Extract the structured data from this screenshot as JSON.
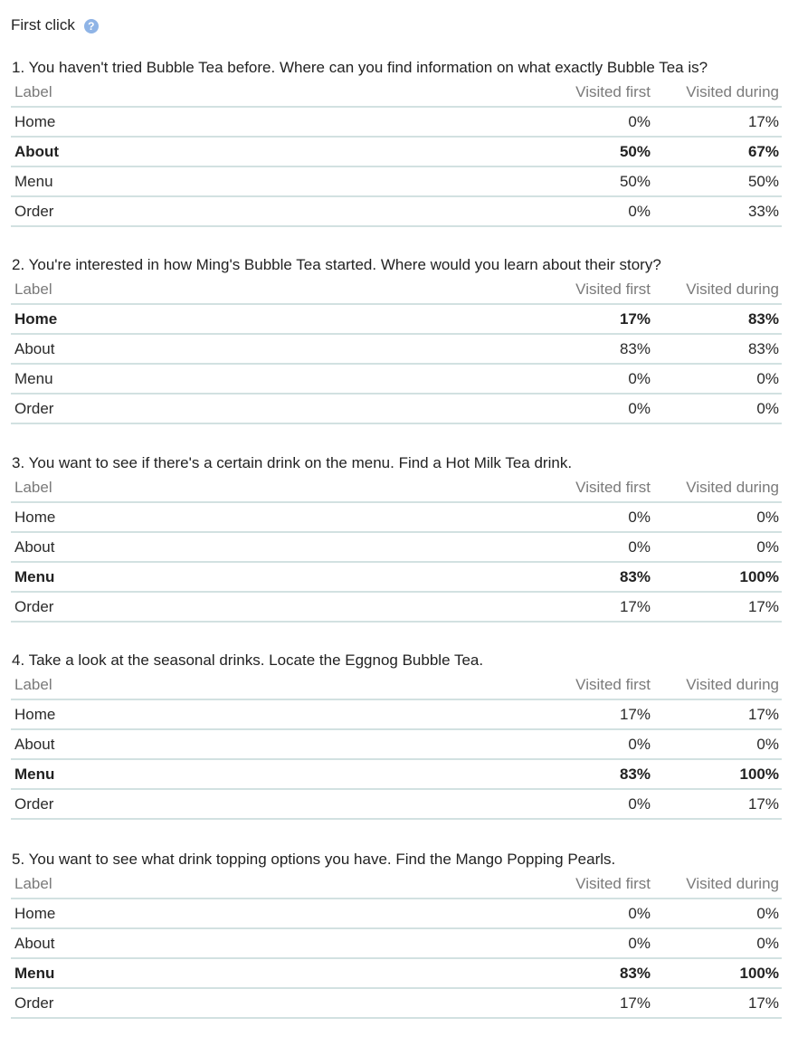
{
  "header": {
    "title": "First click",
    "help_glyph": "?"
  },
  "columns": {
    "label": "Label",
    "visited_first": "Visited first",
    "visited_during": "Visited during"
  },
  "questions": [
    {
      "text": "1. You haven't tried Bubble Tea before. Where can you find information on what exactly Bubble Tea is?",
      "rows": [
        {
          "label": "Home",
          "first": "0%",
          "during": "17%",
          "bold": false
        },
        {
          "label": "About",
          "first": "50%",
          "during": "67%",
          "bold": true
        },
        {
          "label": "Menu",
          "first": "50%",
          "during": "50%",
          "bold": false
        },
        {
          "label": "Order",
          "first": "0%",
          "during": "33%",
          "bold": false
        }
      ]
    },
    {
      "text": "2. You're interested in how Ming's Bubble Tea started. Where would you learn about their story?",
      "rows": [
        {
          "label": "Home",
          "first": "17%",
          "during": "83%",
          "bold": true
        },
        {
          "label": "About",
          "first": "83%",
          "during": "83%",
          "bold": false
        },
        {
          "label": "Menu",
          "first": "0%",
          "during": "0%",
          "bold": false
        },
        {
          "label": "Order",
          "first": "0%",
          "during": "0%",
          "bold": false
        }
      ]
    },
    {
      "text": "3. You want to see if there's a certain drink on the menu. Find a Hot Milk Tea drink.",
      "rows": [
        {
          "label": "Home",
          "first": "0%",
          "during": "0%",
          "bold": false
        },
        {
          "label": "About",
          "first": "0%",
          "during": "0%",
          "bold": false
        },
        {
          "label": "Menu",
          "first": "83%",
          "during": "100%",
          "bold": true
        },
        {
          "label": "Order",
          "first": "17%",
          "during": "17%",
          "bold": false
        }
      ]
    },
    {
      "text": "4. Take a look at the seasonal drinks. Locate the Eggnog Bubble Tea.",
      "rows": [
        {
          "label": "Home",
          "first": "17%",
          "during": "17%",
          "bold": false
        },
        {
          "label": "About",
          "first": "0%",
          "during": "0%",
          "bold": false
        },
        {
          "label": "Menu",
          "first": "83%",
          "during": "100%",
          "bold": true
        },
        {
          "label": "Order",
          "first": "0%",
          "during": "17%",
          "bold": false
        }
      ]
    },
    {
      "text": "5. You want to see what drink topping options you have. Find the Mango Popping Pearls.",
      "rows": [
        {
          "label": "Home",
          "first": "0%",
          "during": "0%",
          "bold": false
        },
        {
          "label": "About",
          "first": "0%",
          "during": "0%",
          "bold": false
        },
        {
          "label": "Menu",
          "first": "83%",
          "during": "100%",
          "bold": true
        },
        {
          "label": "Order",
          "first": "17%",
          "during": "17%",
          "bold": false
        }
      ]
    }
  ]
}
